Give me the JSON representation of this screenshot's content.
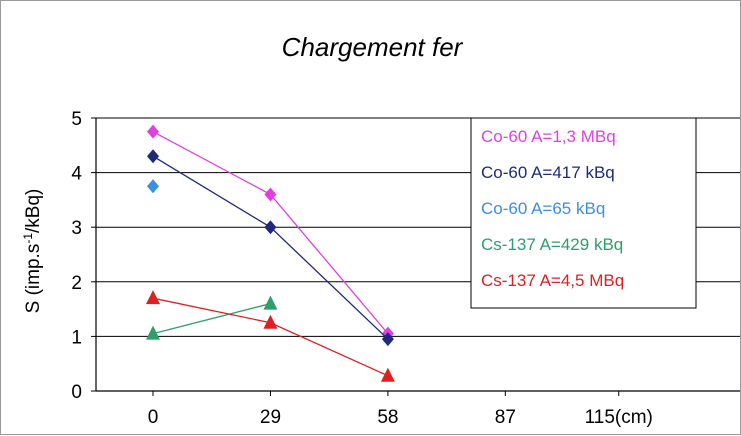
{
  "chart_data": {
    "type": "line",
    "title": "Chargement fer",
    "ylabel_parts": [
      "S (imp.s",
      "-1",
      "/kBq)"
    ],
    "ylim": [
      0,
      5
    ],
    "y_ticks": [
      "0",
      "1",
      "2",
      "3",
      "4",
      "5"
    ],
    "x_ticks": [
      {
        "x": 0,
        "label": "0"
      },
      {
        "x": 29,
        "label": "29"
      },
      {
        "x": 58,
        "label": "58"
      },
      {
        "x": 87,
        "label": "87"
      },
      {
        "x": 115,
        "label": "115(cm)"
      }
    ],
    "grid": "horizontal",
    "legend_placement": "right",
    "series": [
      {
        "name": "Co-60 A=1,3 MBq",
        "color": "#e040e0",
        "marker": "diamond",
        "x": [
          0,
          29,
          58
        ],
        "y": [
          4.75,
          3.6,
          1.05
        ]
      },
      {
        "name": "Co-60 A=417 kBq",
        "color": "#1f2a7a",
        "marker": "diamond",
        "x": [
          0,
          29,
          58
        ],
        "y": [
          4.3,
          3.0,
          0.95
        ]
      },
      {
        "name": "Co-60 A=65 kBq",
        "color": "#3a8ee6",
        "marker": "diamond",
        "x": [
          0
        ],
        "y": [
          3.75
        ]
      },
      {
        "name": "Cs-137 A=429 kBq",
        "color": "#2e9e6a",
        "marker": "triangle",
        "x": [
          0,
          29
        ],
        "y": [
          1.05,
          1.6
        ]
      },
      {
        "name": "Cs-137 A=4,5 MBq",
        "color": "#e02020",
        "marker": "triangle",
        "x": [
          0,
          29,
          58
        ],
        "y": [
          1.7,
          1.25,
          0.28
        ]
      }
    ]
  }
}
